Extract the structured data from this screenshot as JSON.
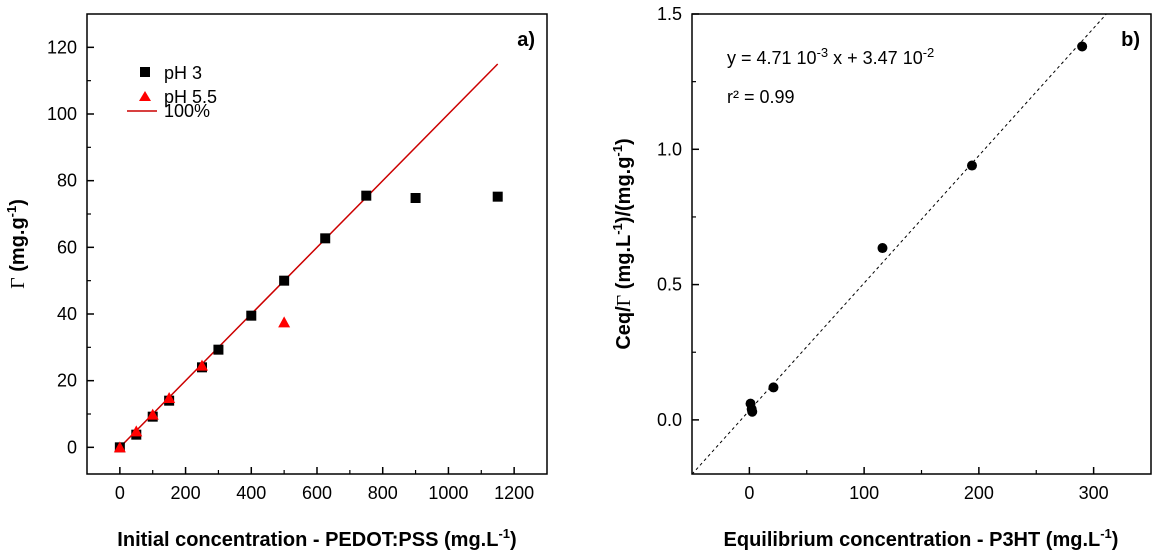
{
  "chart_data": [
    {
      "type": "scatter",
      "panel_label": "a)",
      "xlabel": "Initial concentration - PEDOT:PSS (mg.L",
      "xlabel_sup": "-1",
      "xlabel_end": ")",
      "ylabel_symbol": "Γ",
      "ylabel": " (mg.g",
      "ylabel_sup": "-1",
      "ylabel_end": ")",
      "xlim": [
        -100,
        1300
      ],
      "ylim": [
        -8,
        130
      ],
      "xticks": [
        0,
        200,
        400,
        600,
        800,
        1000,
        1200
      ],
      "yticks": [
        0,
        20,
        40,
        60,
        80,
        100,
        120
      ],
      "legend_position": "top-left",
      "series": [
        {
          "name": "pH 3",
          "marker": "square",
          "color": "#000000",
          "x": [
            0,
            50,
            100,
            150,
            250,
            300,
            400,
            500,
            625,
            750,
            900,
            1150
          ],
          "y": [
            0,
            3.8,
            9.2,
            14,
            24,
            29.3,
            39.5,
            50,
            62.7,
            75.5,
            74.8,
            75.2
          ]
        },
        {
          "name": "pH 5.5",
          "marker": "triangle",
          "color": "#ff0000",
          "x": [
            0,
            50,
            100,
            150,
            250,
            500
          ],
          "y": [
            0,
            4.8,
            9.8,
            14.8,
            24.5,
            37.5
          ]
        },
        {
          "name": "100%",
          "type": "line",
          "color": "#cc0000",
          "x": [
            0,
            1150
          ],
          "y": [
            0,
            115
          ]
        }
      ]
    },
    {
      "type": "scatter",
      "panel_label": "b)",
      "xlabel": "Equilibrium concentration - P3HT (mg.L",
      "xlabel_sup": "-1",
      "xlabel_end": ")",
      "ylabel_pre": "Ceq/",
      "ylabel_symbol": "Γ",
      "ylabel": " (mg.L",
      "ylabel_sup": "-1",
      "ylabel_mid": ")/(mg.g",
      "ylabel_sup2": "-1",
      "ylabel_end": ")",
      "xlim": [
        -50,
        350
      ],
      "ylim": [
        -0.2,
        1.5
      ],
      "xticks": [
        0,
        100,
        200,
        300
      ],
      "yticks": [
        0.0,
        0.5,
        1.0,
        1.5
      ],
      "ytick_labels": [
        "0.0",
        "0.5",
        "1.0",
        "1.5"
      ],
      "annotation": {
        "eq_prefix": "y = 4.71 10",
        "eq_sup1": "-3",
        "eq_mid": " x + 3.47 10",
        "eq_sup2": "-2",
        "r2": "r² = 0.99"
      },
      "series": [
        {
          "name": "data",
          "marker": "circle",
          "color": "#000000",
          "x": [
            1,
            2,
            2.5,
            21,
            116,
            194,
            290
          ],
          "y": [
            0.06,
            0.04,
            0.03,
            0.12,
            0.635,
            0.94,
            1.38
          ]
        },
        {
          "name": "fit",
          "type": "line",
          "style": "dashed",
          "color": "#000000",
          "slope": 0.00471,
          "intercept": 0.0347
        }
      ]
    }
  ]
}
